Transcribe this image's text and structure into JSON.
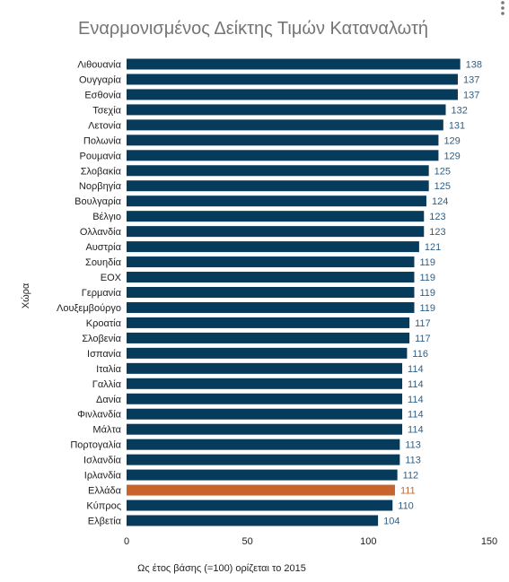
{
  "chart_data": {
    "type": "bar",
    "orientation": "horizontal",
    "title": "Εναρμονισμένος Δείκτης Τιμών Καταναλωτή",
    "xlabel": "Ως έτος βάσης (=100) ορίζεται το 2015",
    "ylabel": "Χώρα",
    "xlim": [
      0,
      150
    ],
    "xticks": [
      0,
      50,
      100,
      150
    ],
    "grid": false,
    "legend": "none",
    "colors": {
      "default": "#073b5c",
      "highlight": "#c8642b",
      "default_label": "#2f5f86",
      "highlight_label": "#c8642b"
    },
    "highlight_category": "Ελλάδα",
    "categories": [
      "Λιθουανία",
      "Ουγγαρία",
      "Εσθονία",
      "Τσεχία",
      "Λετονία",
      "Πολωνία",
      "Ρουμανία",
      "Σλοβακία",
      "Νορβηγία",
      "Βουλγαρία",
      "Βέλγιο",
      "Ολλανδία",
      "Αυστρία",
      "Σουηδία",
      "ΕΟΧ",
      "Γερμανία",
      "Λουξεμβούργο",
      "Κροατία",
      "Σλοβενία",
      "Ισπανία",
      "Ιταλία",
      "Γαλλία",
      "Δανία",
      "Φινλανδία",
      "Μάλτα",
      "Πορτογαλία",
      "Ισλανδία",
      "Ιρλανδία",
      "Ελλάδα",
      "Κύπρος",
      "Ελβετία"
    ],
    "values": [
      138,
      137,
      137,
      132,
      131,
      129,
      129,
      125,
      125,
      124,
      123,
      123,
      121,
      119,
      119,
      119,
      119,
      117,
      117,
      116,
      114,
      114,
      114,
      114,
      114,
      113,
      113,
      112,
      111,
      110,
      104
    ]
  },
  "menu": {
    "icon": "more-vert-icon"
  }
}
